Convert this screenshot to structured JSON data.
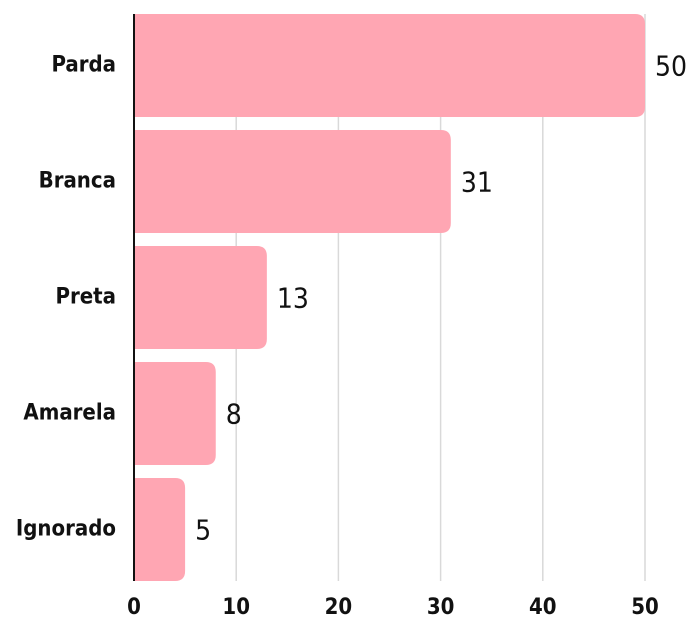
{
  "chart_data": {
    "type": "bar",
    "orientation": "horizontal",
    "categories": [
      "Parda",
      "Branca",
      "Preta",
      "Amarela",
      "Ignorado"
    ],
    "values": [
      50,
      31,
      13,
      8,
      5
    ],
    "color": "#ffa6b3",
    "xlim": [
      0,
      50
    ],
    "xticks": [
      0,
      10,
      20,
      30,
      40,
      50
    ],
    "grid": true
  }
}
